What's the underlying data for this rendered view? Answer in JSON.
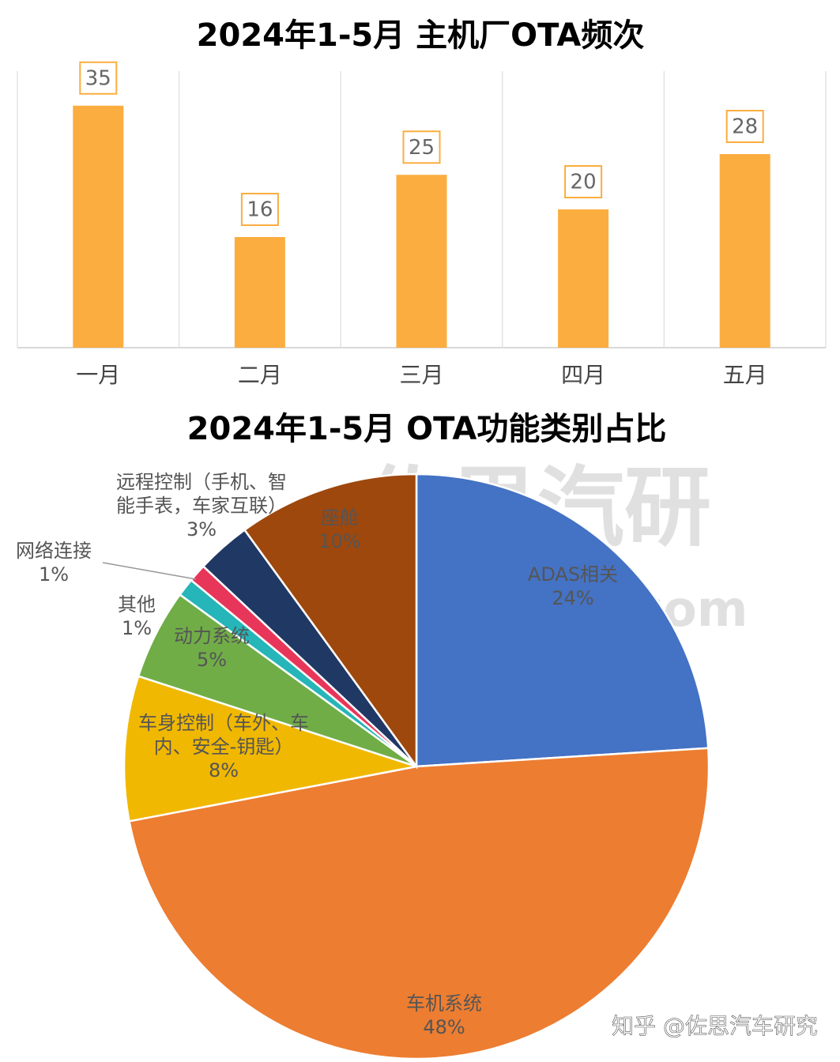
{
  "chart_data": [
    {
      "type": "bar",
      "title": "2024年1-5月 主机厂OTA频次",
      "categories": [
        "一月",
        "二月",
        "三月",
        "四月",
        "五月"
      ],
      "values": [
        35,
        16,
        25,
        20,
        28
      ],
      "color": "#fbad3f",
      "ylim": [
        0,
        40
      ]
    },
    {
      "type": "pie",
      "title": "2024年1-5月 OTA功能类别占比",
      "categories": [
        "ADAS相关",
        "车机系统",
        "车身控制（车外、车内、安全-钥匙）",
        "动力系统",
        "其他",
        "网络连接",
        "远程控制（手机、智能手表，车家互联）",
        "座舱"
      ],
      "values": [
        24,
        48,
        8,
        5,
        1,
        1,
        3,
        10
      ],
      "value_labels": [
        "24%",
        "48%",
        "8%",
        "5%",
        "1%",
        "1%",
        "3%",
        "10%"
      ],
      "colors": [
        "#4472c4",
        "#ed7d31",
        "#f0b800",
        "#70ad47",
        "#26b5b8",
        "#e8365a",
        "#203864",
        "#9e480e"
      ]
    }
  ],
  "watermark": {
    "brand": "佐思汽研",
    "site": "shujubang.com"
  },
  "credit": "知乎 @佐思汽车研究"
}
